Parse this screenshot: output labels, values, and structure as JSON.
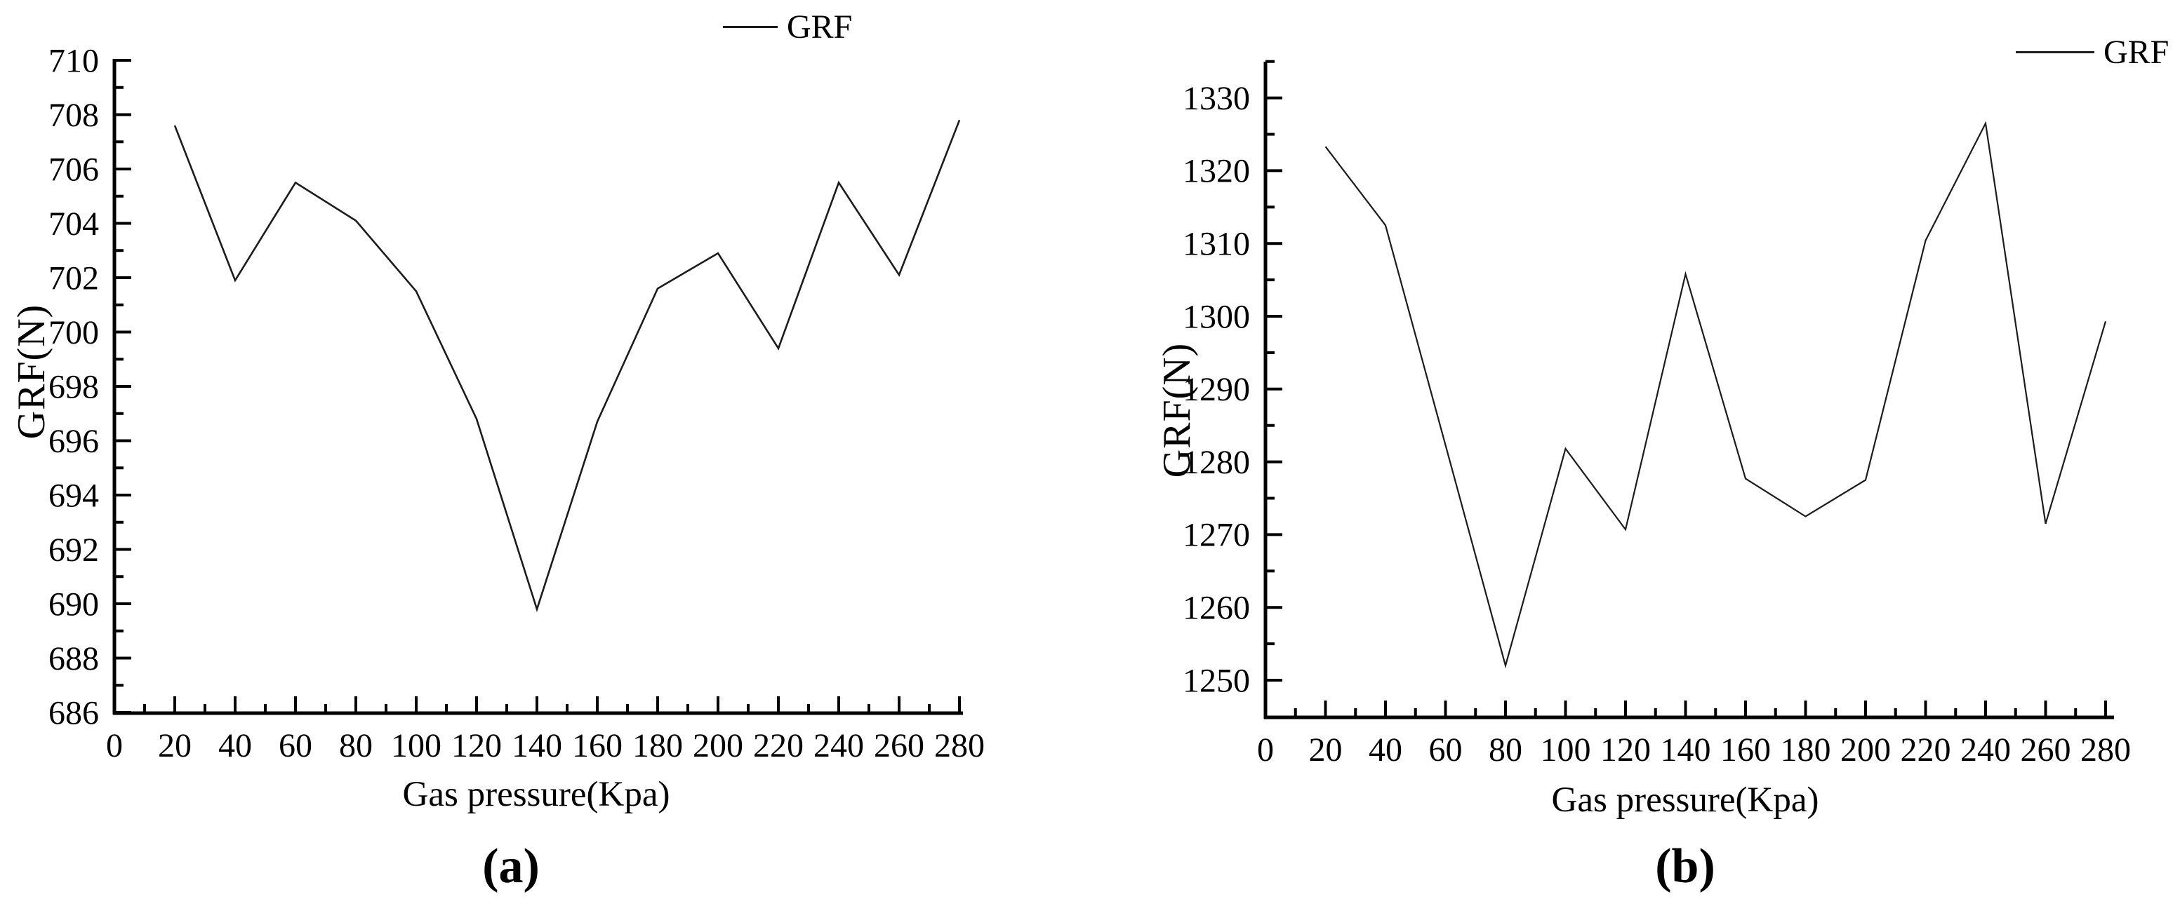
{
  "captions": [
    "(a)",
    "(b)"
  ],
  "colors": {
    "background": "#ffffff",
    "line": "#1c1c1c",
    "axis": "#000000",
    "text": "#000000"
  },
  "chart_data": [
    {
      "type": "line",
      "panel": "a",
      "title": "",
      "xlabel": "Gas pressure(Kpa)",
      "ylabel": "GRF(N)",
      "legend": [
        "GRF"
      ],
      "legend_position": "top-right",
      "grid": false,
      "x": [
        20,
        40,
        60,
        80,
        100,
        120,
        140,
        160,
        180,
        200,
        220,
        240,
        260,
        280
      ],
      "series": [
        {
          "name": "GRF",
          "values": [
            707.6,
            701.9,
            705.5,
            704.1,
            701.5,
            696.8,
            689.8,
            696.7,
            701.6,
            702.9,
            699.4,
            705.5,
            702.1,
            707.8
          ]
        }
      ],
      "x_ticks": [
        0,
        20,
        40,
        60,
        80,
        100,
        120,
        140,
        160,
        180,
        200,
        220,
        240,
        260,
        280
      ],
      "x_minor_ticks": [
        10,
        30,
        50,
        70,
        90,
        110,
        130,
        150,
        170,
        190,
        210,
        230,
        250,
        270
      ],
      "y_ticks": [
        686,
        688,
        690,
        692,
        694,
        696,
        698,
        700,
        702,
        704,
        706,
        708,
        710
      ],
      "y_minor_ticks": [
        687,
        689,
        691,
        693,
        695,
        697,
        699,
        701,
        703,
        705,
        707,
        709
      ],
      "xlim": [
        0,
        282
      ],
      "ylim": [
        686,
        710
      ]
    },
    {
      "type": "line",
      "panel": "b",
      "title": "",
      "xlabel": "Gas pressure(Kpa)",
      "ylabel": "GRF(N)",
      "legend": [
        "GRF"
      ],
      "legend_position": "top-right",
      "grid": false,
      "x": [
        20,
        40,
        60,
        80,
        100,
        120,
        140,
        160,
        180,
        200,
        220,
        240,
        260,
        280
      ],
      "series": [
        {
          "name": "GRF",
          "values": [
            1323.3,
            1312.5,
            1282.3,
            1252.0,
            1281.8,
            1270.7,
            1305.8,
            1277.7,
            1272.5,
            1277.5,
            1310.4,
            1326.5,
            1271.5,
            1299.3
          ]
        }
      ],
      "x_ticks": [
        0,
        20,
        40,
        60,
        80,
        100,
        120,
        140,
        160,
        180,
        200,
        220,
        240,
        260,
        280
      ],
      "x_minor_ticks": [
        10,
        30,
        50,
        70,
        90,
        110,
        130,
        150,
        170,
        190,
        210,
        230,
        250,
        270
      ],
      "y_ticks": [
        1250,
        1260,
        1270,
        1280,
        1290,
        1300,
        1310,
        1320,
        1330
      ],
      "y_minor_ticks": [
        1255,
        1265,
        1275,
        1285,
        1295,
        1305,
        1315,
        1325,
        1335
      ],
      "xlim": [
        0,
        282
      ],
      "ylim": [
        1245,
        1336
      ]
    }
  ]
}
